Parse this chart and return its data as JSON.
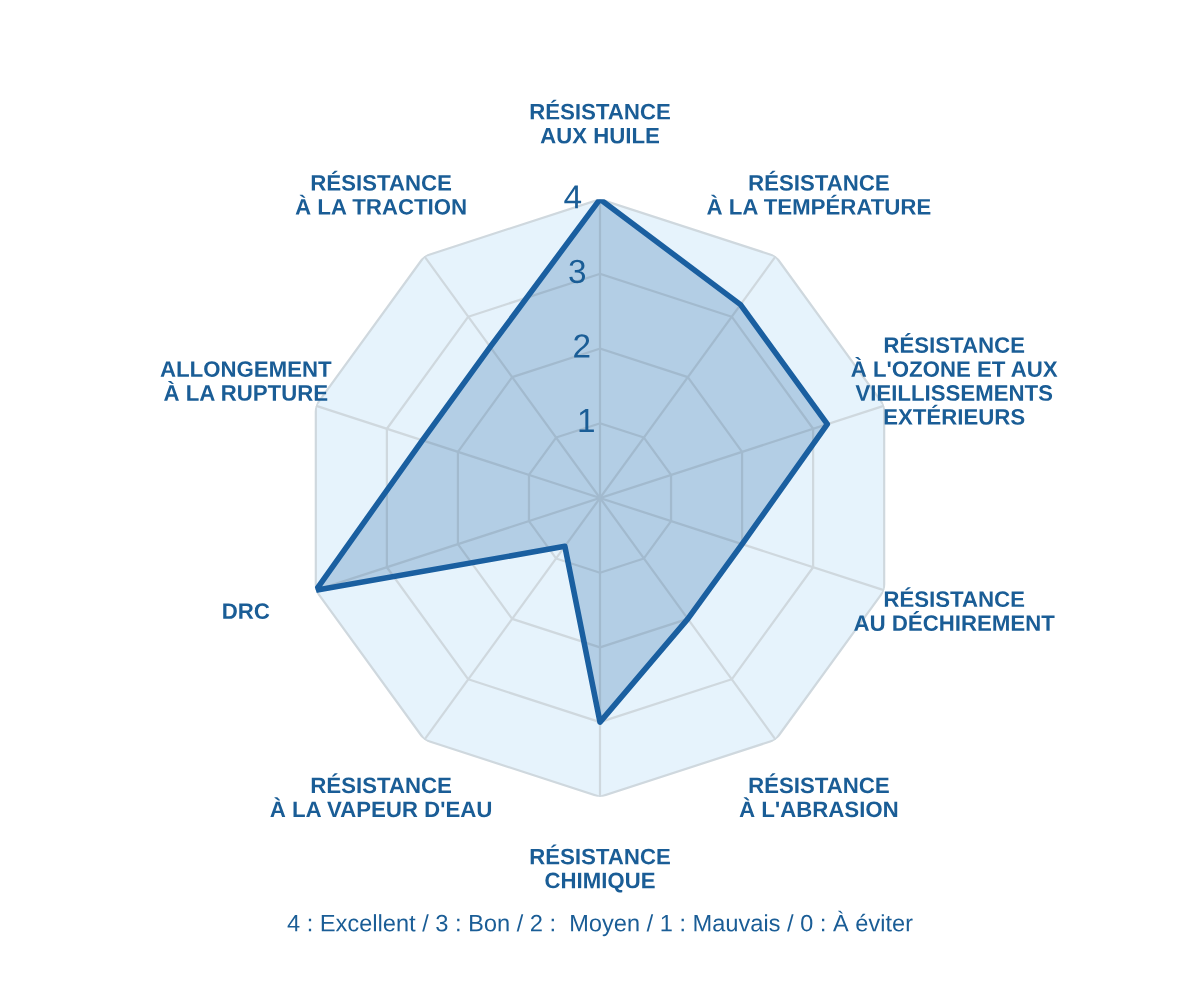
{
  "chart_data": {
    "type": "radar",
    "categories": [
      "RÉSISTANCE\nAUX HUILE",
      "RÉSISTANCE\nÀ LA TEMPÉRATURE",
      "RÉSISTANCE\nÀ L'OZONE ET AUX\nVIEILLISSEMENTS\nEXTÉRIEURS",
      "RÉSISTANCE\nAU DÉCHIREMENT",
      "RÉSISTANCE\nÀ L'ABRASION",
      "RÉSISTANCE\nCHIMIQUE",
      "RÉSISTANCE\nÀ LA VAPEUR D'EAU",
      "DRC",
      "ALLONGEMENT\nÀ LA RUPTURE",
      "RÉSISTANCE\nÀ LA TRACTION"
    ],
    "series": [
      {
        "color": "#1a5fa0",
        "values": [
          4,
          3.2,
          3.2,
          2,
          2,
          3,
          0.8,
          4,
          2.5,
          2.5
        ]
      }
    ],
    "ylim": [
      0,
      4
    ],
    "yticks": [
      1,
      2,
      3,
      4
    ],
    "grid": true,
    "annotations": [
      "4 : Excellent / 3 : Bon / 2 :  Moyen / 1 : Mauvais / 0 : À éviter"
    ]
  }
}
